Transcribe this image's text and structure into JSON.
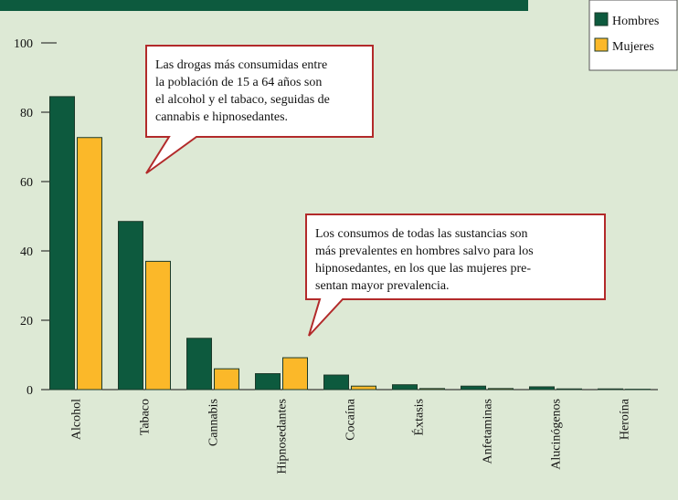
{
  "chart_data": {
    "type": "bar",
    "categories": [
      "Alcohol",
      "Tabaco",
      "Cannabis",
      "Hipnosedantes",
      "Cocaína",
      "Éxtasis",
      "Anfetaminas",
      "Alucinógenos",
      "Heroína"
    ],
    "series": [
      {
        "name": "Hombres",
        "color": "#0d5a3e",
        "values": [
          84.5,
          48.5,
          14.8,
          4.6,
          4.2,
          1.4,
          1.0,
          0.8,
          0.2
        ]
      },
      {
        "name": "Mujeres",
        "color": "#fbb829",
        "values": [
          72.7,
          37.0,
          6.0,
          9.2,
          1.0,
          0.3,
          0.3,
          0.2,
          0.1
        ]
      }
    ],
    "ylim": [
      0,
      100
    ],
    "yticks": [
      0,
      20,
      40,
      60,
      80,
      100
    ],
    "annotations": [
      {
        "lines": [
          "Las drogas más consumidas entre",
          "la población de 15 a 64 años son",
          "el alcohol y el tabaco, seguidas de",
          "cannabis e hipnosedantes."
        ]
      },
      {
        "lines": [
          "Los consumos de todas las sustancias son",
          "más prevalentes en hombres salvo para los",
          "hipnosedantes, en los que las mujeres pre-",
          "sentan mayor prevalencia."
        ]
      }
    ]
  }
}
